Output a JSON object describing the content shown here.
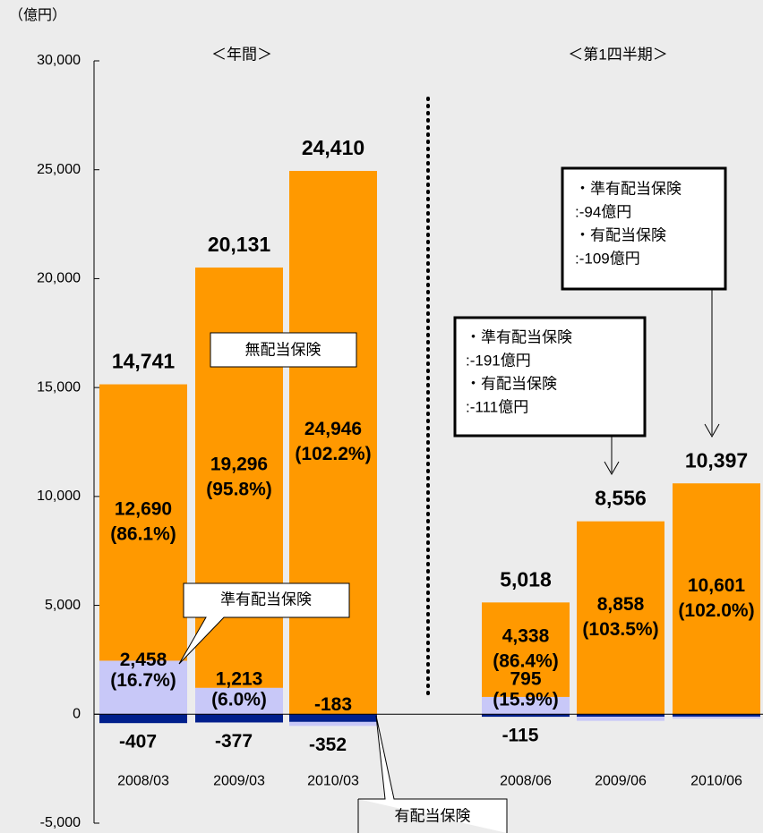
{
  "chart_data": {
    "type": "bar",
    "stacked": true,
    "unit_label": "（億円）",
    "section_labels": [
      "＜年間＞",
      "＜第1四半期＞"
    ],
    "categories": [
      "2008/03",
      "2009/03",
      "2010/03",
      "2008/06",
      "2009/06",
      "2010/06"
    ],
    "ylim": [
      -5000,
      30000
    ],
    "yticks": [
      {
        "value": -5000,
        "label": "-5,000"
      },
      0,
      {
        "value": 5000,
        "label": "5,000"
      },
      {
        "value": 10000,
        "label": "10,000"
      },
      {
        "value": 15000,
        "label": "15,000"
      },
      {
        "value": 20000,
        "label": "20,000"
      },
      {
        "value": 25000,
        "label": "25,000"
      },
      {
        "value": 30000,
        "label": "30,000"
      }
    ],
    "series": [
      {
        "name": "有配当保険",
        "color": "#001f8c",
        "values": [
          -407,
          -377,
          -352,
          -115,
          -111,
          -109
        ],
        "value_labels": [
          "-407",
          "-377",
          "-352",
          "-115",
          null,
          null
        ]
      },
      {
        "name": "準有配当保険",
        "color": "#c8c8f8",
        "values": [
          2458,
          1213,
          -183,
          795,
          -191,
          -94
        ],
        "value_labels": [
          "2,458",
          "1,213",
          "-183",
          "795",
          null,
          null
        ],
        "share_labels": [
          "(16.7%)",
          "(6.0%)",
          null,
          "(15.9%)",
          null,
          null
        ]
      },
      {
        "name": "無配当保険",
        "color": "#ff9900",
        "values": [
          12690,
          19296,
          24946,
          4338,
          8858,
          10601
        ],
        "value_labels": [
          "12,690",
          "19,296",
          "24,946",
          "4,338",
          "8,858",
          "10,601"
        ],
        "share_labels": [
          "(86.1%)",
          "(95.8%)",
          "(102.2%)",
          "(86.4%)",
          "(103.5%)",
          "(102.0%)"
        ]
      }
    ],
    "totals": [
      14741,
      20131,
      24410,
      5018,
      8556,
      10397
    ],
    "total_labels": [
      "14,741",
      "20,131",
      "24,410",
      "5,018",
      "8,556",
      "10,397"
    ],
    "notes": [
      [
        "・準有配当保険",
        ":-191億円",
        "・有配当保険",
        ":-111億円"
      ],
      [
        "・準有配当保険",
        ":-94億円",
        "・有配当保険",
        ":-109億円"
      ]
    ]
  }
}
